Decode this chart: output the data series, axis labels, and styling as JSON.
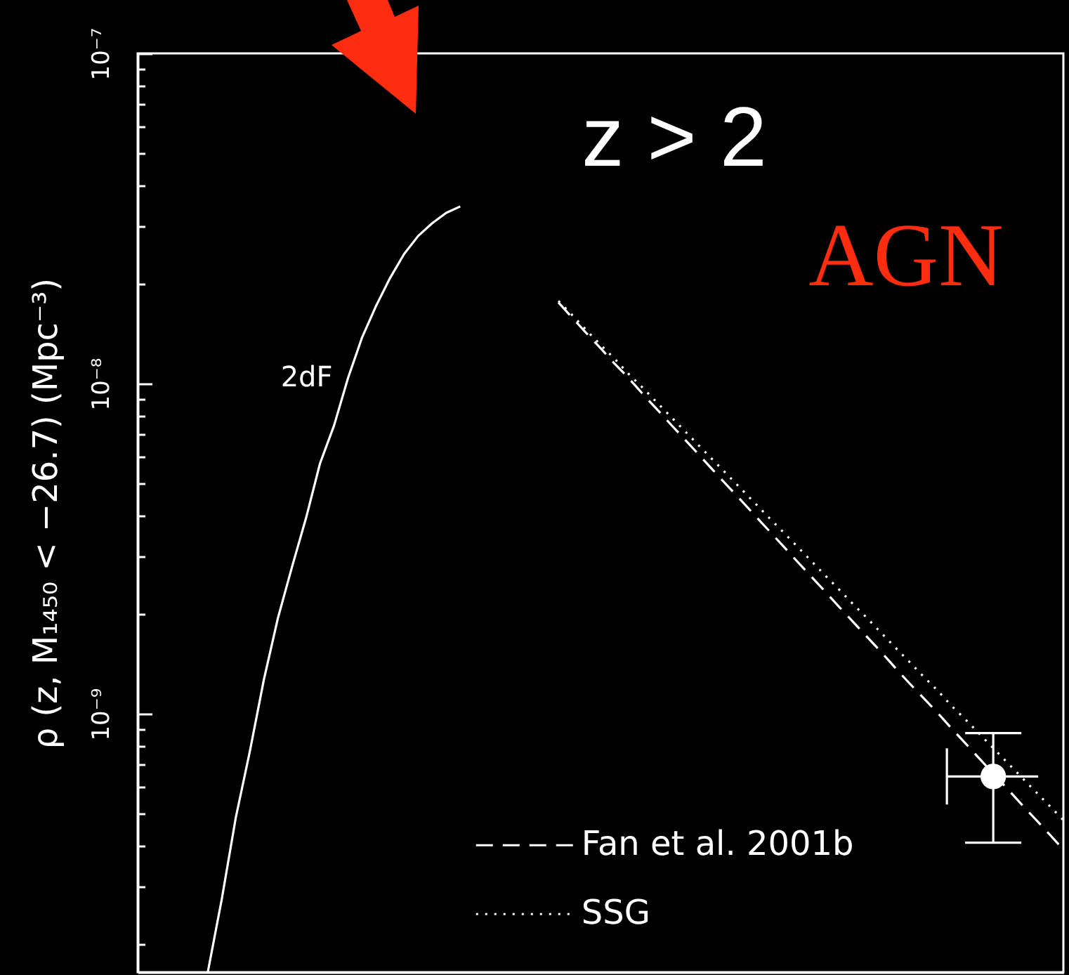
{
  "chart_data": {
    "type": "line",
    "ylabel": "ρ (z, M₁₄₅₀ < −26.7) (Mpc⁻³)",
    "annotations": [
      "z > 2",
      "AGN"
    ],
    "categories": [
      null,
      null,
      null,
      null,
      null,
      null,
      null,
      null,
      null,
      null,
      null,
      null,
      null,
      null,
      null,
      null,
      null,
      null,
      null,
      null,
      null,
      null,
      null,
      null,
      null,
      null,
      null,
      null,
      null,
      null,
      null,
      null,
      null,
      null,
      null,
      null,
      null,
      null,
      null,
      null,
      null,
      null,
      null,
      null,
      null,
      null,
      null,
      null,
      null,
      null,
      null,
      null,
      null,
      null,
      null,
      null,
      null,
      null,
      null,
      null,
      null,
      null,
      null,
      null,
      null,
      null,
      null
    ],
    "log": true,
    "ylim": [
      1.65e-10,
      1e-07
    ],
    "yticks": [
      {
        "value": 1e-07,
        "label": "10⁻⁷"
      },
      {
        "value": 9e-08,
        "label": null
      },
      {
        "value": 8e-08,
        "label": null
      },
      {
        "value": 7e-08,
        "label": null
      },
      {
        "value": 6e-08,
        "label": null
      },
      {
        "value": 5e-08,
        "label": null
      },
      {
        "value": 4e-08,
        "label": null
      },
      {
        "value": 3e-08,
        "label": null
      },
      {
        "value": 2e-08,
        "label": null
      },
      {
        "value": 1e-08,
        "label": "10⁻⁸"
      },
      {
        "value": 9e-09,
        "label": null
      },
      {
        "value": 8e-09,
        "label": null
      },
      {
        "value": 7e-09,
        "label": null
      },
      {
        "value": 6e-09,
        "label": null
      },
      {
        "value": 5e-09,
        "label": null
      },
      {
        "value": 4e-09,
        "label": null
      },
      {
        "value": 3e-09,
        "label": null
      },
      {
        "value": 2e-09,
        "label": null
      },
      {
        "value": 1e-09,
        "label": "10⁻⁹"
      },
      {
        "value": 9e-10,
        "label": null
      },
      {
        "value": 8e-10,
        "label": null
      },
      {
        "value": 7e-10,
        "label": null
      },
      {
        "value": 6e-10,
        "label": null
      },
      {
        "value": 5e-10,
        "label": null
      },
      {
        "value": 4e-10,
        "label": null
      },
      {
        "value": 3e-10,
        "label": null
      },
      {
        "value": 2e-10,
        "label": null
      }
    ],
    "tick_labels": "y",
    "legend": "bottom",
    "series": [
      {
        "name": "2dF",
        "color": "#ffffff",
        "line_style": "solid",
        "values": [
          null,
          null,
          null,
          null,
          null,
          1.65e-10,
          2.75e-10,
          4.86e-10,
          7.7e-10,
          1.27e-09,
          1.95e-09,
          2.78e-09,
          3.91e-09,
          5.73e-09,
          7.46e-09,
          1.04e-08,
          1.38e-08,
          1.72e-08,
          2.09e-08,
          2.47e-08,
          2.8e-08,
          3.06e-08,
          3.29e-08,
          3.44e-08,
          null,
          null,
          null,
          null,
          null,
          null,
          null,
          null,
          null,
          null,
          null,
          null,
          null,
          null,
          null,
          null,
          null,
          null,
          null,
          null,
          null,
          null,
          null,
          null,
          null,
          null,
          null,
          null,
          null,
          null,
          null,
          null,
          null,
          null,
          null,
          null,
          null,
          null,
          null,
          null,
          null,
          null,
          null
        ]
      },
      {
        "name": "Fan et al. 2001b",
        "color": "#ffffff",
        "line_style": "dashed",
        "values": [
          null,
          null,
          null,
          null,
          null,
          null,
          null,
          null,
          null,
          null,
          null,
          null,
          null,
          null,
          null,
          null,
          null,
          null,
          null,
          null,
          null,
          null,
          null,
          null,
          null,
          null,
          null,
          null,
          null,
          null,
          1.76e-08,
          1.58e-08,
          1.42e-08,
          1.28e-08,
          1.15e-08,
          1.04e-08,
          9.31e-09,
          8.38e-09,
          7.53e-09,
          6.78e-09,
          6.1e-09,
          5.48e-09,
          4.93e-09,
          4.44e-09,
          3.99e-09,
          3.59e-09,
          3.23e-09,
          2.9e-09,
          2.61e-09,
          2.35e-09,
          2.11e-09,
          1.9e-09,
          1.71e-09,
          1.54e-09,
          1.38e-09,
          1.24e-09,
          1.12e-09,
          1.01e-09,
          9.06e-10,
          8.15e-10,
          7.33e-10,
          6.59e-10,
          5.93e-10,
          5.33e-10,
          4.8e-10,
          4.32e-10,
          3.88e-10
        ]
      },
      {
        "name": "SSG",
        "color": "#ffffff",
        "line_style": "dotted",
        "values": [
          null,
          null,
          null,
          null,
          null,
          null,
          null,
          null,
          null,
          null,
          null,
          null,
          null,
          null,
          null,
          null,
          null,
          null,
          null,
          null,
          null,
          null,
          null,
          null,
          null,
          null,
          null,
          null,
          null,
          null,
          1.78e-08,
          1.61e-08,
          1.45e-08,
          1.31e-08,
          1.19e-08,
          1.07e-08,
          9.72e-09,
          8.79e-09,
          7.95e-09,
          7.19e-09,
          6.5e-09,
          5.88e-09,
          5.32e-09,
          4.81e-09,
          4.35e-09,
          3.93e-09,
          3.56e-09,
          3.22e-09,
          2.91e-09,
          2.63e-09,
          2.38e-09,
          2.15e-09,
          1.95e-09,
          1.76e-09,
          1.59e-09,
          1.44e-09,
          1.3e-09,
          1.18e-09,
          1.06e-09,
          9.63e-10,
          8.71e-10,
          7.87e-10,
          7.12e-10,
          6.44e-10,
          5.82e-10,
          5.27e-10,
          4.76e-10
        ]
      },
      {
        "type": "scatter",
        "color": "#ffffff",
        "marker": "circle",
        "values": [
          null,
          null,
          null,
          null,
          null,
          null,
          null,
          null,
          null,
          null,
          null,
          null,
          null,
          null,
          null,
          null,
          null,
          null,
          null,
          null,
          null,
          null,
          null,
          null,
          null,
          null,
          null,
          null,
          null,
          null,
          null,
          null,
          null,
          null,
          null,
          null,
          null,
          null,
          null,
          null,
          null,
          null,
          null,
          null,
          null,
          null,
          null,
          null,
          null,
          null,
          null,
          null,
          null,
          null,
          null,
          null,
          null,
          null,
          null,
          null,
          null,
          6.46e-10,
          null,
          null,
          null,
          null,
          null
        ],
        "errors": [
          null,
          null,
          null,
          null,
          null,
          null,
          null,
          null,
          null,
          null,
          null,
          null,
          null,
          null,
          null,
          null,
          null,
          null,
          null,
          null,
          null,
          null,
          null,
          null,
          null,
          null,
          null,
          null,
          null,
          null,
          null,
          null,
          null,
          null,
          null,
          null,
          null,
          null,
          null,
          null,
          null,
          null,
          null,
          null,
          null,
          null,
          null,
          null,
          null,
          null,
          null,
          null,
          null,
          null,
          null,
          null,
          null,
          null,
          null,
          null,
          null,
          [
            4.07e-10,
            8.74e-10
          ],
          null,
          null,
          null,
          null,
          null
        ]
      }
    ]
  }
}
